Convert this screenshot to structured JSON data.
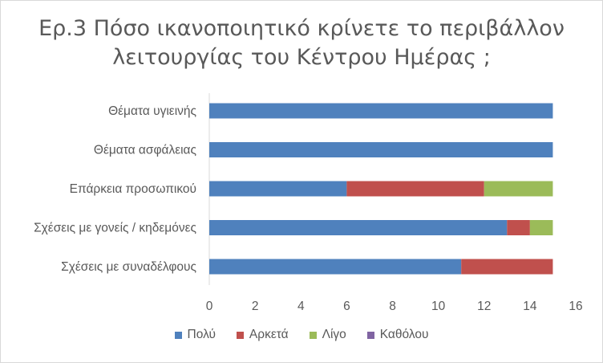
{
  "chart_data": {
    "type": "bar",
    "orientation": "horizontal",
    "stacked": true,
    "title_lines": [
      "Ερ.3 Πόσο ικανοποιητικό κρίνετε το περιβάλλον",
      "λειτουργίας του Κέντρου Ημέρας ;"
    ],
    "categories": [
      "Θέματα υγιεινής",
      "Θέματα ασφάλειας",
      "Επάρκεια προσωπικού",
      "Σχέσεις με γονείς / κηδεμόνες",
      "Σχέσεις με συναδέλφους"
    ],
    "series": [
      {
        "name": "Πολύ",
        "color": "#4f81bd",
        "values": [
          15,
          15,
          6,
          13,
          11
        ]
      },
      {
        "name": "Αρκετά",
        "color": "#c0504d",
        "values": [
          0,
          0,
          6,
          1,
          4
        ]
      },
      {
        "name": "Λίγο",
        "color": "#9bbb59",
        "values": [
          0,
          0,
          3,
          1,
          0
        ]
      },
      {
        "name": "Καθόλου",
        "color": "#8064a2",
        "values": [
          0,
          0,
          0,
          0,
          0
        ]
      }
    ],
    "xlim": [
      0,
      16
    ],
    "xticks": [
      0,
      2,
      4,
      6,
      8,
      10,
      12,
      14,
      16
    ],
    "grid": false,
    "legend_position": "bottom"
  }
}
